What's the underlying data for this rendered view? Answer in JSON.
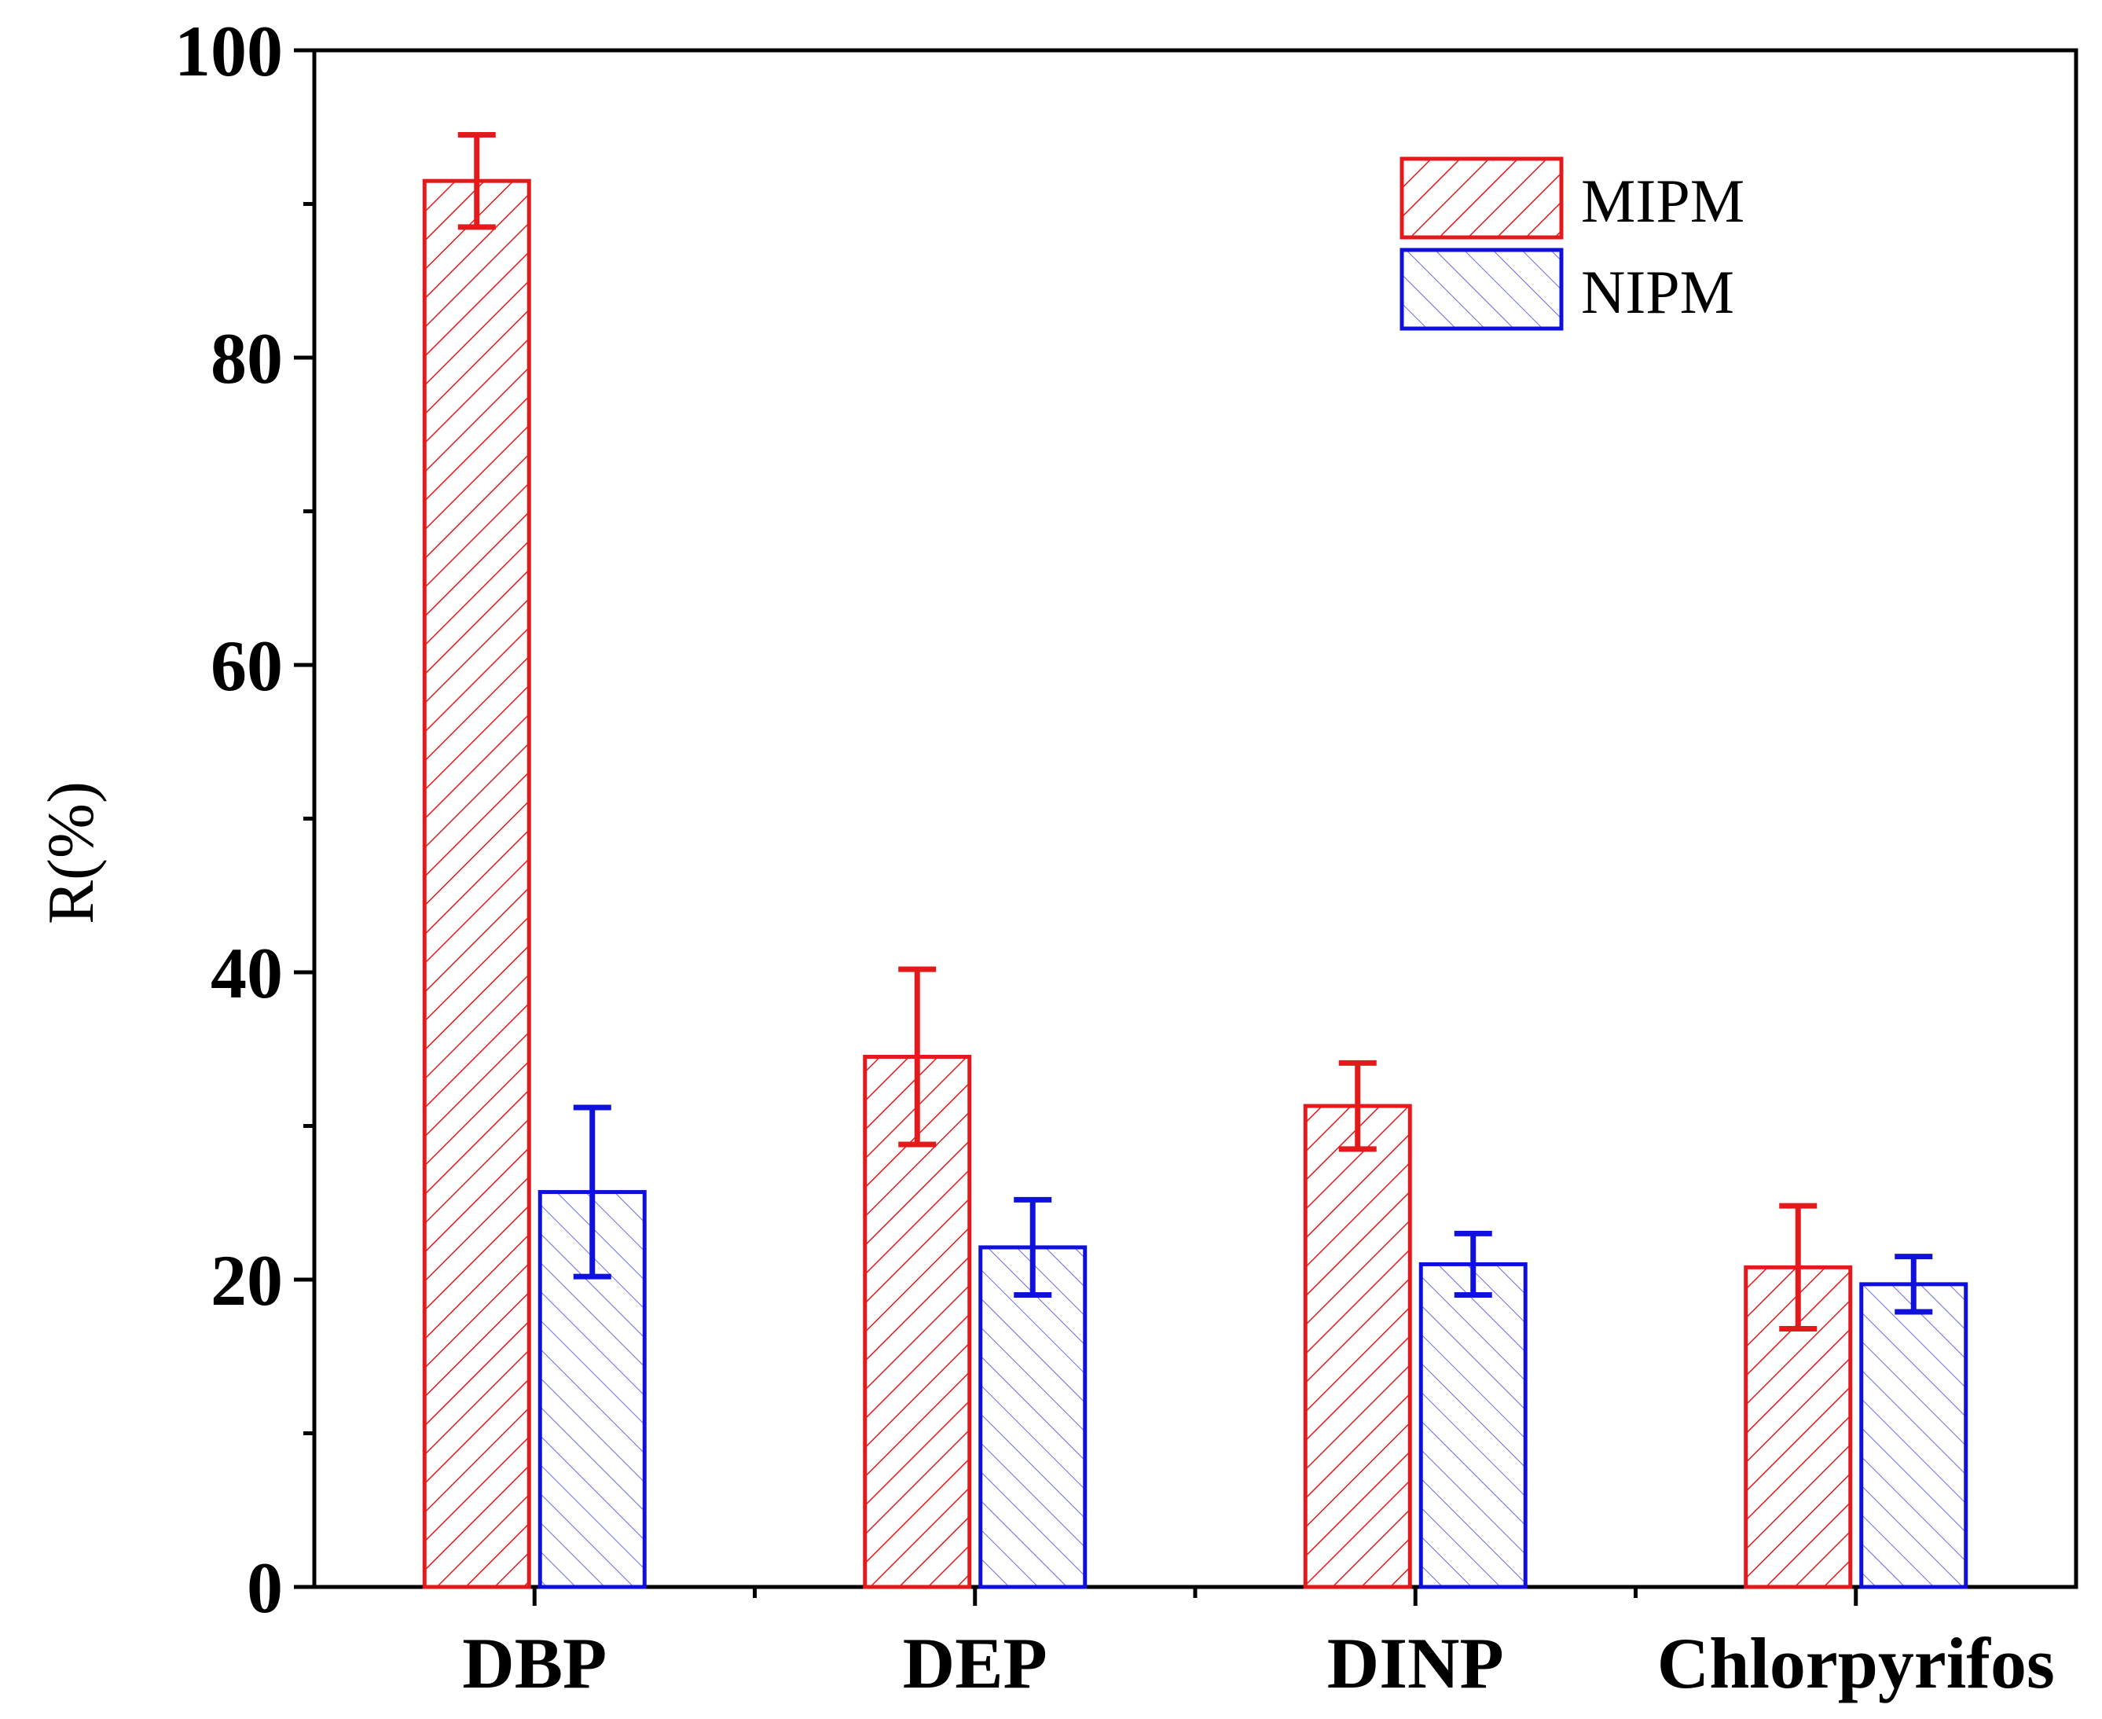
{
  "chart_data": {
    "type": "bar",
    "title": "",
    "xlabel": "",
    "ylabel": "R(%)",
    "ylim": [
      0,
      100
    ],
    "yticks": [
      "0",
      "20",
      "40",
      "60",
      "80",
      "100"
    ],
    "categories": [
      "DBP",
      "DEP",
      "DINP",
      "Chlorpyrifos"
    ],
    "series": [
      {
        "name": "MIPM",
        "color": "#e31a1c",
        "hatch": "diagonal-down",
        "values": [
          91.5,
          34.5,
          31.3,
          20.8
        ],
        "errors": [
          3.0,
          5.7,
          2.8,
          4.0
        ]
      },
      {
        "name": "NIPM",
        "color": "#1010dd",
        "hatch": "diagonal-up",
        "values": [
          25.7,
          22.1,
          21.0,
          19.7
        ],
        "errors": [
          5.5,
          3.1,
          2.0,
          1.8
        ]
      }
    ],
    "legend_position": "top-right",
    "grid": false
  }
}
